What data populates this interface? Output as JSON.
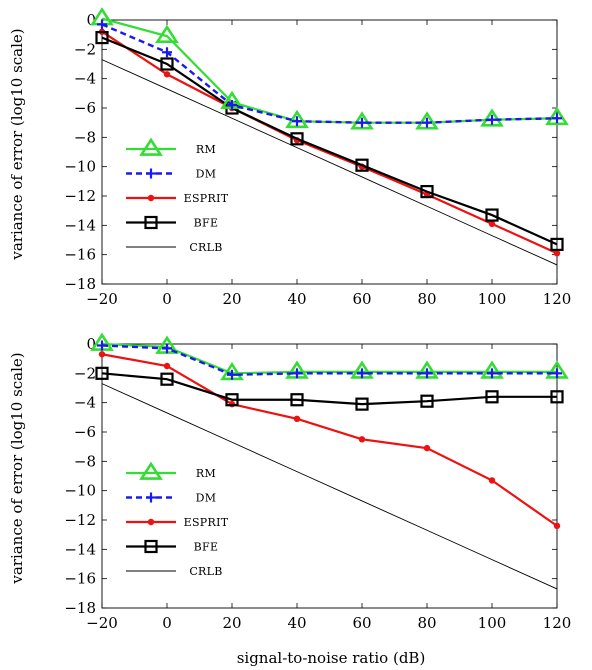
{
  "chart_data": [
    {
      "type": "line",
      "xlabel": "",
      "ylabel": "variance of error (log10 scale)",
      "x": [
        -20,
        0,
        20,
        40,
        60,
        80,
        100,
        120
      ],
      "xlim": [
        -20,
        120
      ],
      "ylim": [
        -18,
        0
      ],
      "x_ticks": [
        "−20",
        "0",
        "20",
        "40",
        "60",
        "80",
        "100",
        "120"
      ],
      "y_ticks": [
        "0",
        "−2",
        "−4",
        "−6",
        "−8",
        "−10",
        "−12",
        "−14",
        "−16",
        "−18"
      ],
      "grid": false,
      "legend_position": "bottom-left",
      "series": [
        {
          "name": "RM",
          "color": "#33dd33",
          "marker": "triangle",
          "line": "solid",
          "values": [
            0.1,
            -1.1,
            -5.6,
            -6.9,
            -7.0,
            -7.0,
            -6.8,
            -6.7
          ]
        },
        {
          "name": "DM",
          "color": "#1a1aee",
          "marker": "plus",
          "line": "dashed",
          "values": [
            -0.3,
            -2.2,
            -5.8,
            -6.9,
            -7.0,
            -7.0,
            -6.8,
            -6.7
          ]
        },
        {
          "name": "ESPRIT",
          "color": "#ee1111",
          "marker": "dot",
          "line": "solid",
          "values": [
            -0.8,
            -3.7,
            -6.0,
            -8.2,
            -10.0,
            -11.9,
            -13.9,
            -15.9
          ]
        },
        {
          "name": "BFE",
          "color": "#000000",
          "marker": "square",
          "line": "solid",
          "values": [
            -1.2,
            -3.0,
            -6.0,
            -8.1,
            -9.9,
            -11.7,
            -13.3,
            -15.3
          ]
        },
        {
          "name": "CRLB",
          "color": "#000000",
          "marker": "none",
          "line": "thin",
          "values": [
            -2.7,
            -4.7,
            -6.7,
            -8.7,
            -10.7,
            -12.7,
            -14.7,
            -16.7
          ]
        }
      ]
    },
    {
      "type": "line",
      "xlabel": "signal-to-noise ratio (dB)",
      "ylabel": "variance of error (log10 scale)",
      "x": [
        -20,
        0,
        20,
        40,
        60,
        80,
        100,
        120
      ],
      "xlim": [
        -20,
        120
      ],
      "ylim": [
        -18,
        0
      ],
      "x_ticks": [
        "−20",
        "0",
        "20",
        "40",
        "60",
        "80",
        "100",
        "120"
      ],
      "y_ticks": [
        "0",
        "−2",
        "−4",
        "−6",
        "−8",
        "−10",
        "−12",
        "−14",
        "−16",
        "−18"
      ],
      "grid": false,
      "legend_position": "bottom-left",
      "series": [
        {
          "name": "RM",
          "color": "#33dd33",
          "marker": "triangle",
          "line": "solid",
          "values": [
            0.0,
            -0.2,
            -2.0,
            -1.9,
            -1.9,
            -1.9,
            -1.9,
            -1.9
          ]
        },
        {
          "name": "DM",
          "color": "#1a1aee",
          "marker": "plus",
          "line": "dashed",
          "values": [
            -0.1,
            -0.3,
            -2.1,
            -2.0,
            -2.0,
            -2.0,
            -2.0,
            -2.0
          ]
        },
        {
          "name": "ESPRIT",
          "color": "#ee1111",
          "marker": "dot",
          "line": "solid",
          "values": [
            -0.7,
            -1.5,
            -4.1,
            -5.1,
            -6.5,
            -7.1,
            -9.3,
            -12.4
          ]
        },
        {
          "name": "BFE",
          "color": "#000000",
          "marker": "square",
          "line": "solid",
          "values": [
            -2.0,
            -2.4,
            -3.8,
            -3.8,
            -4.1,
            -3.9,
            -3.6,
            -3.6
          ]
        },
        {
          "name": "CRLB",
          "color": "#000000",
          "marker": "none",
          "line": "thin",
          "values": [
            -2.7,
            -4.7,
            -6.7,
            -8.7,
            -10.7,
            -12.7,
            -14.7,
            -16.7
          ]
        }
      ]
    }
  ]
}
